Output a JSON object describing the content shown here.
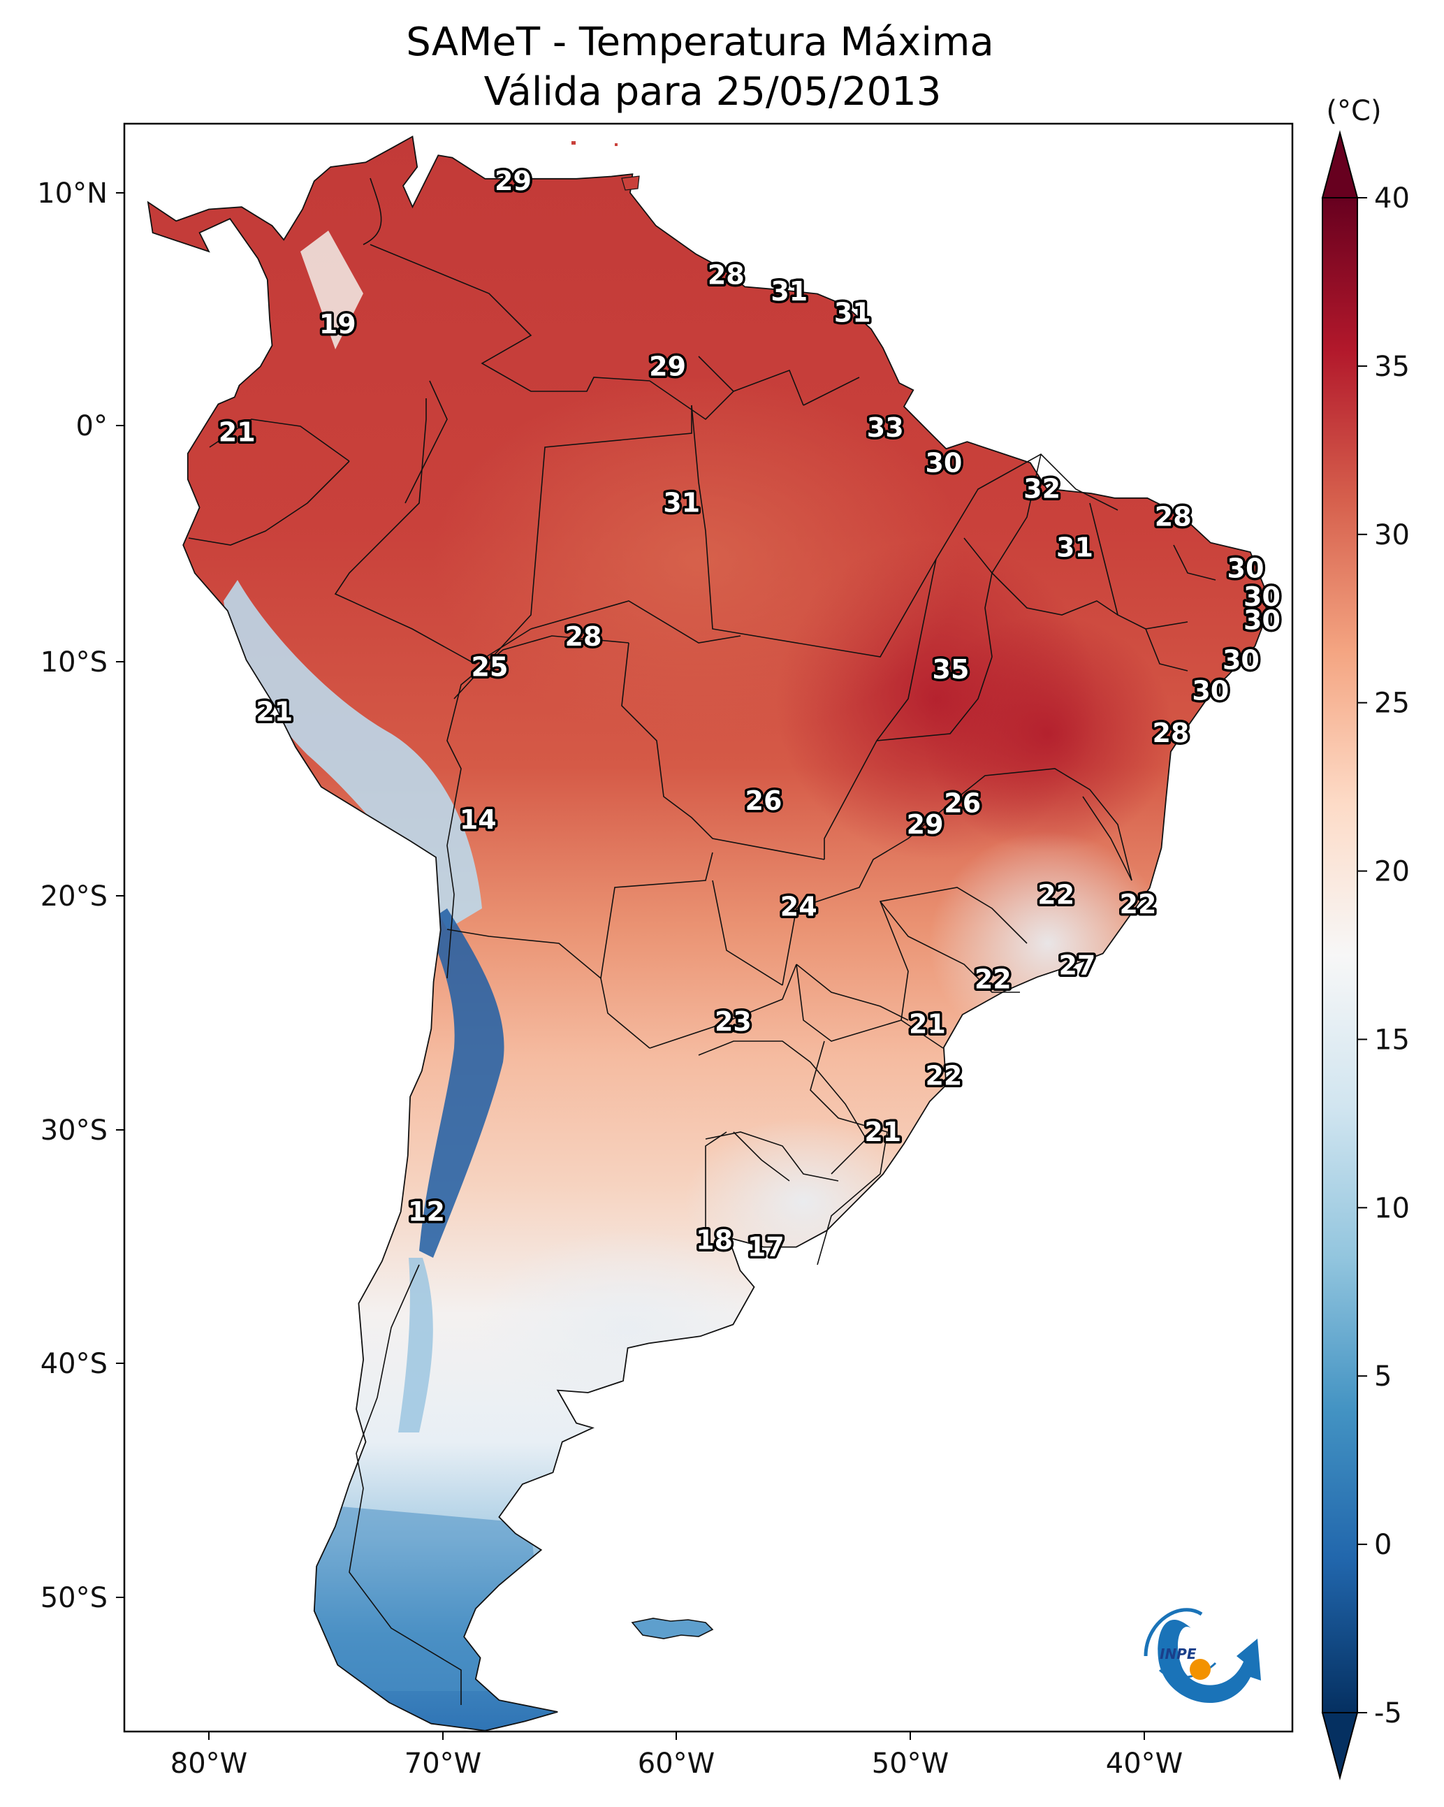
{
  "title_line1": "SAMeT - Temperatura Máxima",
  "title_line2": "Válida para 25/05/2013",
  "units": "(°C)",
  "logo_text": "INPE",
  "axes": {
    "lon_ticks": [
      "80°W",
      "70°W",
      "60°W",
      "50°W",
      "40°W"
    ],
    "lat_ticks": [
      "10°N",
      "0°",
      "10°S",
      "20°S",
      "30°S",
      "40°S",
      "50°S"
    ]
  },
  "colorbar": {
    "ticks": [
      "40",
      "35",
      "30",
      "25",
      "20",
      "15",
      "10",
      "5",
      "0",
      "-5"
    ],
    "min": -5,
    "max": 40,
    "colors": [
      "#053061",
      "#2166ac",
      "#4393c3",
      "#92c5de",
      "#d1e5f0",
      "#f7f7f7",
      "#fddbc7",
      "#f4a582",
      "#d6604d",
      "#b2182b",
      "#67001f"
    ]
  },
  "labels": [
    {
      "value": "29",
      "lon": -67.0,
      "lat": 10.5
    },
    {
      "value": "28",
      "lon": -57.9,
      "lat": 6.5
    },
    {
      "value": "31",
      "lon": -55.2,
      "lat": 5.8
    },
    {
      "value": "31",
      "lon": -52.5,
      "lat": 4.9
    },
    {
      "value": "19",
      "lon": -74.5,
      "lat": 4.4
    },
    {
      "value": "29",
      "lon": -60.4,
      "lat": 2.6
    },
    {
      "value": "33",
      "lon": -51.1,
      "lat": 0.0
    },
    {
      "value": "21",
      "lon": -78.8,
      "lat": -0.2
    },
    {
      "value": "30",
      "lon": -48.6,
      "lat": -1.5
    },
    {
      "value": "32",
      "lon": -44.4,
      "lat": -2.6
    },
    {
      "value": "31",
      "lon": -59.8,
      "lat": -3.2
    },
    {
      "value": "28",
      "lon": -38.8,
      "lat": -3.8
    },
    {
      "value": "31",
      "lon": -43.0,
      "lat": -5.1
    },
    {
      "value": "30",
      "lon": -35.7,
      "lat": -6.0
    },
    {
      "value": "30",
      "lon": -35.0,
      "lat": -7.2
    },
    {
      "value": "30",
      "lon": -35.0,
      "lat": -8.2
    },
    {
      "value": "28",
      "lon": -64.0,
      "lat": -8.9
    },
    {
      "value": "30",
      "lon": -35.9,
      "lat": -9.9
    },
    {
      "value": "25",
      "lon": -68.0,
      "lat": -10.2
    },
    {
      "value": "35",
      "lon": -48.3,
      "lat": -10.3
    },
    {
      "value": "30",
      "lon": -37.2,
      "lat": -11.2
    },
    {
      "value": "21",
      "lon": -77.2,
      "lat": -12.1
    },
    {
      "value": "28",
      "lon": -38.9,
      "lat": -13.0
    },
    {
      "value": "26",
      "lon": -56.3,
      "lat": -15.9
    },
    {
      "value": "26",
      "lon": -47.8,
      "lat": -16.0
    },
    {
      "value": "29",
      "lon": -49.4,
      "lat": -16.9
    },
    {
      "value": "14",
      "lon": -68.5,
      "lat": -16.7
    },
    {
      "value": "22",
      "lon": -43.8,
      "lat": -19.9
    },
    {
      "value": "22",
      "lon": -40.3,
      "lat": -20.3
    },
    {
      "value": "24",
      "lon": -54.8,
      "lat": -20.4
    },
    {
      "value": "27",
      "lon": -42.9,
      "lat": -22.9
    },
    {
      "value": "22",
      "lon": -46.5,
      "lat": -23.5
    },
    {
      "value": "23",
      "lon": -57.6,
      "lat": -25.3
    },
    {
      "value": "21",
      "lon": -49.3,
      "lat": -25.4
    },
    {
      "value": "22",
      "lon": -48.6,
      "lat": -27.6
    },
    {
      "value": "21",
      "lon": -51.2,
      "lat": -30.0
    },
    {
      "value": "12",
      "lon": -70.7,
      "lat": -33.4
    },
    {
      "value": "18",
      "lon": -58.4,
      "lat": -34.6
    },
    {
      "value": "17",
      "lon": -56.2,
      "lat": -34.9
    }
  ]
}
